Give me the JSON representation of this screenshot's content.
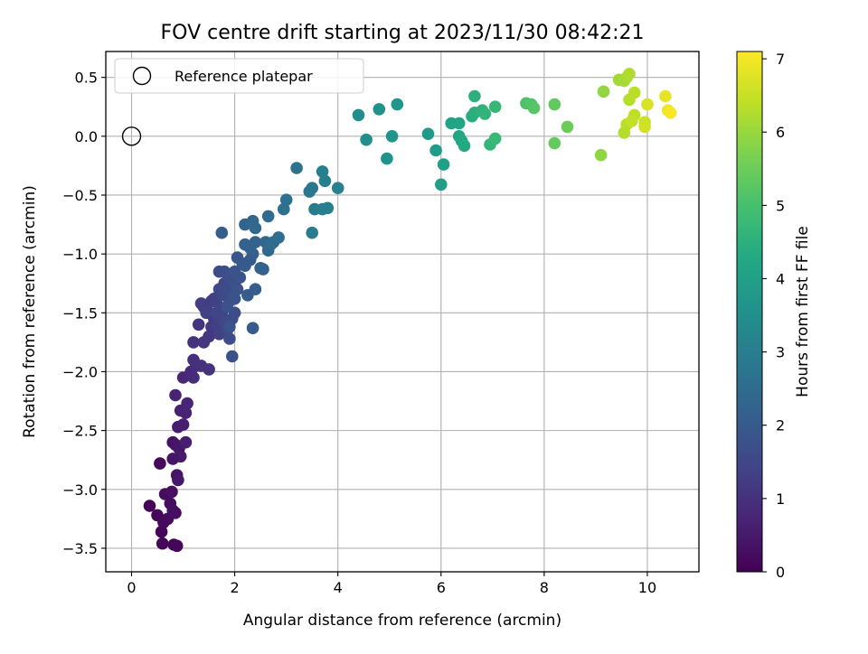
{
  "chart_data": {
    "type": "scatter",
    "title": "FOV centre drift starting at 2023/11/30 08:42:21",
    "xlabel": "Angular distance from reference (arcmin)",
    "ylabel": "Rotation from reference (arcmin)",
    "xlim": [
      -0.5,
      11.0
    ],
    "ylim": [
      -3.7,
      0.72
    ],
    "xticks": [
      0,
      2,
      4,
      6,
      8,
      10
    ],
    "xtick_labels": [
      "0",
      "2",
      "4",
      "6",
      "8",
      "10"
    ],
    "yticks": [
      0.5,
      0.0,
      -0.5,
      -1.0,
      -1.5,
      -2.0,
      -2.5,
      -3.0,
      -3.5
    ],
    "ytick_labels": [
      "0.5",
      "0.0",
      "−0.5",
      "−1.0",
      "−1.5",
      "−2.0",
      "−2.5",
      "−3.0",
      "−3.5"
    ],
    "grid": true,
    "legend": {
      "position": "upper-left",
      "entries": [
        "Reference platepar"
      ]
    },
    "reference_point": {
      "x": 0,
      "y": 0
    },
    "colorbar": {
      "label": "Hours from first FF file",
      "colormap": "viridis",
      "range": [
        0,
        7.1
      ],
      "ticks": [
        0,
        1,
        2,
        3,
        4,
        5,
        6,
        7
      ],
      "tick_labels": [
        "0",
        "1",
        "2",
        "3",
        "4",
        "5",
        "6",
        "7"
      ]
    },
    "series": [
      {
        "points": [
          [
            0.35,
            -3.14,
            0.05
          ],
          [
            0.5,
            -3.22,
            0.1
          ],
          [
            0.55,
            -2.78,
            0.15
          ],
          [
            0.58,
            -3.36,
            0.1
          ],
          [
            0.6,
            -3.46,
            0.12
          ],
          [
            0.62,
            -3.28,
            0.18
          ],
          [
            0.65,
            -3.04,
            0.2
          ],
          [
            0.7,
            -3.25,
            0.22
          ],
          [
            0.75,
            -3.12,
            0.25
          ],
          [
            0.78,
            -3.02,
            0.28
          ],
          [
            0.8,
            -3.18,
            0.3
          ],
          [
            0.82,
            -3.47,
            0.08
          ],
          [
            0.88,
            -3.48,
            0.12
          ],
          [
            0.85,
            -3.2,
            0.3
          ],
          [
            0.8,
            -2.6,
            0.35
          ],
          [
            0.85,
            -2.62,
            0.4
          ],
          [
            0.88,
            -2.88,
            0.38
          ],
          [
            0.9,
            -2.92,
            0.42
          ],
          [
            0.92,
            -2.65,
            0.45
          ],
          [
            0.95,
            -2.72,
            0.5
          ],
          [
            0.8,
            -2.74,
            0.4
          ],
          [
            0.9,
            -2.47,
            0.55
          ],
          [
            1.0,
            -2.45,
            0.6
          ],
          [
            1.05,
            -2.6,
            0.6
          ],
          [
            0.95,
            -2.33,
            0.65
          ],
          [
            1.05,
            -2.35,
            0.7
          ],
          [
            1.08,
            -2.27,
            0.75
          ],
          [
            0.85,
            -2.2,
            0.7
          ],
          [
            1.0,
            -2.05,
            0.8
          ],
          [
            1.15,
            -2.0,
            0.85
          ],
          [
            1.2,
            -2.05,
            0.9
          ],
          [
            1.25,
            -1.95,
            0.95
          ],
          [
            1.2,
            -1.9,
            0.95
          ],
          [
            1.35,
            -1.95,
            1.0
          ],
          [
            1.5,
            -1.98,
            1.05
          ],
          [
            1.2,
            -1.75,
            1.0
          ],
          [
            1.4,
            -1.75,
            1.1
          ],
          [
            1.5,
            -1.7,
            1.15
          ],
          [
            1.3,
            -1.6,
            1.1
          ],
          [
            1.55,
            -1.62,
            1.2
          ],
          [
            1.6,
            -1.55,
            1.25
          ],
          [
            1.65,
            -1.6,
            1.3
          ],
          [
            1.7,
            -1.68,
            1.35
          ],
          [
            1.5,
            -1.5,
            1.2
          ],
          [
            1.45,
            -1.45,
            1.25
          ],
          [
            1.55,
            -1.4,
            1.3
          ],
          [
            1.6,
            -1.38,
            1.35
          ],
          [
            1.7,
            -1.45,
            1.4
          ],
          [
            1.75,
            -1.5,
            1.45
          ],
          [
            1.8,
            -1.58,
            1.5
          ],
          [
            1.85,
            -1.65,
            1.55
          ],
          [
            1.9,
            -1.72,
            1.6
          ],
          [
            1.95,
            -1.55,
            1.6
          ],
          [
            2.0,
            -1.5,
            1.65
          ],
          [
            1.35,
            -1.42,
            1.3
          ],
          [
            1.4,
            -1.45,
            1.3
          ],
          [
            1.45,
            -1.5,
            1.35
          ],
          [
            1.65,
            -1.5,
            1.45
          ],
          [
            1.7,
            -1.3,
            1.5
          ],
          [
            1.75,
            -1.35,
            1.55
          ],
          [
            1.8,
            -1.25,
            1.55
          ],
          [
            1.85,
            -1.3,
            1.6
          ],
          [
            1.9,
            -1.4,
            1.65
          ],
          [
            1.95,
            -1.35,
            1.7
          ],
          [
            2.0,
            -1.25,
            1.75
          ],
          [
            2.05,
            -1.3,
            1.8
          ],
          [
            2.0,
            -1.38,
            1.85
          ],
          [
            1.7,
            -1.15,
            1.6
          ],
          [
            1.8,
            -1.15,
            1.65
          ],
          [
            1.9,
            -1.2,
            1.7
          ],
          [
            2.0,
            -1.15,
            1.8
          ],
          [
            2.1,
            -1.2,
            1.85
          ],
          [
            2.05,
            -1.03,
            1.9
          ],
          [
            2.15,
            -1.08,
            1.95
          ],
          [
            2.2,
            -1.1,
            2.0
          ],
          [
            2.3,
            -1.05,
            2.0
          ],
          [
            1.85,
            -1.45,
            1.8
          ],
          [
            1.9,
            -1.62,
            1.85
          ],
          [
            1.95,
            -1.87,
            1.75
          ],
          [
            2.35,
            -1.63,
            2.0
          ],
          [
            2.25,
            -1.35,
            2.05
          ],
          [
            2.4,
            -1.3,
            2.1
          ],
          [
            2.35,
            -1.0,
            2.1
          ],
          [
            2.4,
            -0.9,
            2.2
          ],
          [
            2.5,
            -1.12,
            2.2
          ],
          [
            2.55,
            -1.13,
            2.25
          ],
          [
            2.2,
            -0.92,
            2.2
          ],
          [
            2.3,
            -0.95,
            2.25
          ],
          [
            2.6,
            -0.9,
            2.35
          ],
          [
            2.65,
            -0.97,
            2.4
          ],
          [
            2.7,
            -0.92,
            2.45
          ],
          [
            2.75,
            -0.9,
            2.5
          ],
          [
            2.85,
            -0.86,
            2.55
          ],
          [
            2.2,
            -0.75,
            2.3
          ],
          [
            2.35,
            -0.72,
            2.35
          ],
          [
            2.4,
            -0.78,
            2.4
          ],
          [
            2.65,
            -0.68,
            2.5
          ],
          [
            1.75,
            -0.82,
            2.1
          ],
          [
            2.95,
            -0.62,
            2.6
          ],
          [
            3.0,
            -0.54,
            2.65
          ],
          [
            3.2,
            -0.27,
            2.7
          ],
          [
            3.45,
            -0.47,
            2.8
          ],
          [
            3.5,
            -0.44,
            2.85
          ],
          [
            3.55,
            -0.62,
            2.9
          ],
          [
            3.5,
            -0.82,
            2.95
          ],
          [
            3.7,
            -0.62,
            3.0
          ],
          [
            3.8,
            -0.61,
            3.05
          ],
          [
            3.75,
            -0.38,
            3.05
          ],
          [
            3.7,
            -0.3,
            3.1
          ],
          [
            4.0,
            -0.44,
            3.15
          ],
          [
            4.4,
            0.18,
            3.4
          ],
          [
            4.55,
            -0.03,
            3.5
          ],
          [
            4.8,
            0.23,
            3.55
          ],
          [
            4.95,
            -0.19,
            3.6
          ],
          [
            5.05,
            0.0,
            3.65
          ],
          [
            5.15,
            0.27,
            3.7
          ],
          [
            5.75,
            0.02,
            3.85
          ],
          [
            5.9,
            -0.12,
            3.9
          ],
          [
            6.0,
            -0.41,
            3.95
          ],
          [
            6.05,
            -0.24,
            4.0
          ],
          [
            6.2,
            0.11,
            4.1
          ],
          [
            6.35,
            0.11,
            4.15
          ],
          [
            6.35,
            0.0,
            4.2
          ],
          [
            6.4,
            -0.04,
            4.25
          ],
          [
            6.45,
            -0.08,
            4.3
          ],
          [
            6.6,
            0.17,
            4.4
          ],
          [
            6.65,
            0.2,
            4.45
          ],
          [
            6.65,
            0.34,
            4.5
          ],
          [
            6.8,
            0.22,
            4.55
          ],
          [
            6.85,
            0.19,
            4.6
          ],
          [
            6.95,
            -0.07,
            4.65
          ],
          [
            7.05,
            0.25,
            4.7
          ],
          [
            7.05,
            -0.02,
            4.75
          ],
          [
            7.65,
            0.28,
            5.1
          ],
          [
            7.75,
            0.27,
            5.15
          ],
          [
            7.8,
            0.24,
            5.2
          ],
          [
            8.2,
            0.27,
            5.35
          ],
          [
            8.2,
            -0.06,
            5.4
          ],
          [
            8.45,
            0.08,
            5.5
          ],
          [
            9.1,
            -0.16,
            5.9
          ],
          [
            9.15,
            0.38,
            5.95
          ],
          [
            9.45,
            0.48,
            6.1
          ],
          [
            9.55,
            0.47,
            6.15
          ],
          [
            9.6,
            0.5,
            6.2
          ],
          [
            9.65,
            0.53,
            6.25
          ],
          [
            9.65,
            0.31,
            6.3
          ],
          [
            9.75,
            0.37,
            6.35
          ],
          [
            9.75,
            0.18,
            6.4
          ],
          [
            9.6,
            0.1,
            6.35
          ],
          [
            9.55,
            0.03,
            6.3
          ],
          [
            9.7,
            0.13,
            6.45
          ],
          [
            9.95,
            0.12,
            6.55
          ],
          [
            9.95,
            0.08,
            6.6
          ],
          [
            10.0,
            0.27,
            6.7
          ],
          [
            10.35,
            0.34,
            6.85
          ],
          [
            10.4,
            0.22,
            6.95
          ],
          [
            10.45,
            0.2,
            7.05
          ]
        ]
      }
    ]
  }
}
